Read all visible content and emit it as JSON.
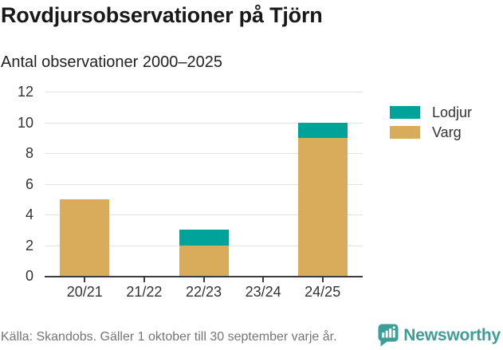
{
  "header": {
    "title": "Rovdjursobservationer på Tjörn",
    "subtitle": "Antal observationer 2000–2025"
  },
  "chart_data": {
    "type": "bar",
    "stacked": true,
    "title": "Rovdjursobservationer på Tjörn",
    "subtitle": "Antal observationer 2000–2025",
    "categories": [
      "20/21",
      "21/22",
      "22/23",
      "23/24",
      "24/25"
    ],
    "series": [
      {
        "name": "Lodjur",
        "color": "#00a39a",
        "values": [
          0,
          0,
          1,
          0,
          1
        ]
      },
      {
        "name": "Varg",
        "color": "#d9ac5c",
        "values": [
          5,
          0,
          2,
          0,
          9
        ]
      }
    ],
    "xlabel": "",
    "ylabel": "",
    "ylim": [
      0,
      12
    ],
    "yticks": [
      0,
      2,
      4,
      6,
      8,
      10,
      12
    ],
    "grid": true,
    "legend_position": "right"
  },
  "colors": {
    "axis": "#3c3c3c",
    "gridline": "#e2e2e2",
    "tick_text": "#333333",
    "title_text": "#191919",
    "muted_text": "#757575",
    "brand_teal": "#3d9e97"
  },
  "footer": {
    "source": "Källa: Skandobs. Gäller 1 oktober till 30 september varje år.",
    "brand": "Newsworthy"
  }
}
